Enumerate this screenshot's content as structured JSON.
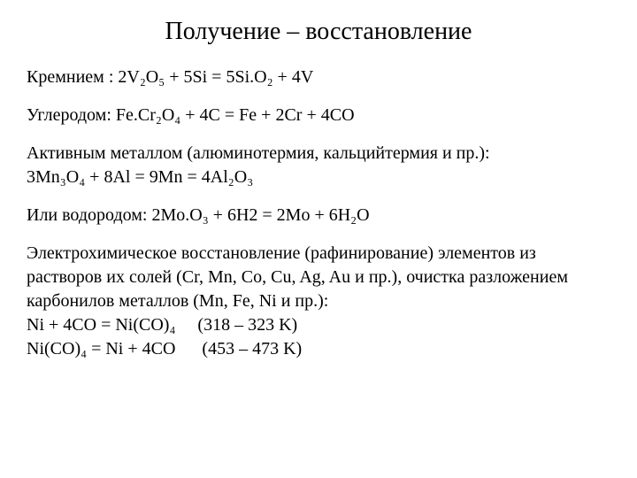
{
  "title": "Получение – восстановление",
  "sections": {
    "silicon": {
      "label": "Кремнием :",
      "equation": "2V₂O₅ + 5Si = 5Si.O₂ + 4V"
    },
    "carbon": {
      "label": "Углеродом:",
      "equation": "Fe.Cr₂O₄ + 4C = Fe + 2Cr + 4CO"
    },
    "active_metal": {
      "label": "Активным металлом (алюминотермия, кальцийтермия и пр.):",
      "equation": "3Mn₃O₄ + 8Al = 9Mn = 4Al₂O₃"
    },
    "hydrogen": {
      "label": "Или водородом:",
      "equation": "2Mo.O₃ + 6H2 = 2Mo + 6H₂O"
    },
    "electrochemical": {
      "text": "Электрохимическое восстановление (рафинирование) элементов из растворов их солей (Cr, Mn, Co, Cu, Ag, Au  и пр.), очистка разложением карбонилов металлов (Mn, Fe, Ni и пр.):",
      "eq1_left": "Ni + 4CO = Ni(CO)₄",
      "eq1_right": "(318 – 323 K)",
      "eq2_left": "Ni(CO)₄ = Ni + 4CO",
      "eq2_right": "(453 – 473 K)"
    }
  }
}
